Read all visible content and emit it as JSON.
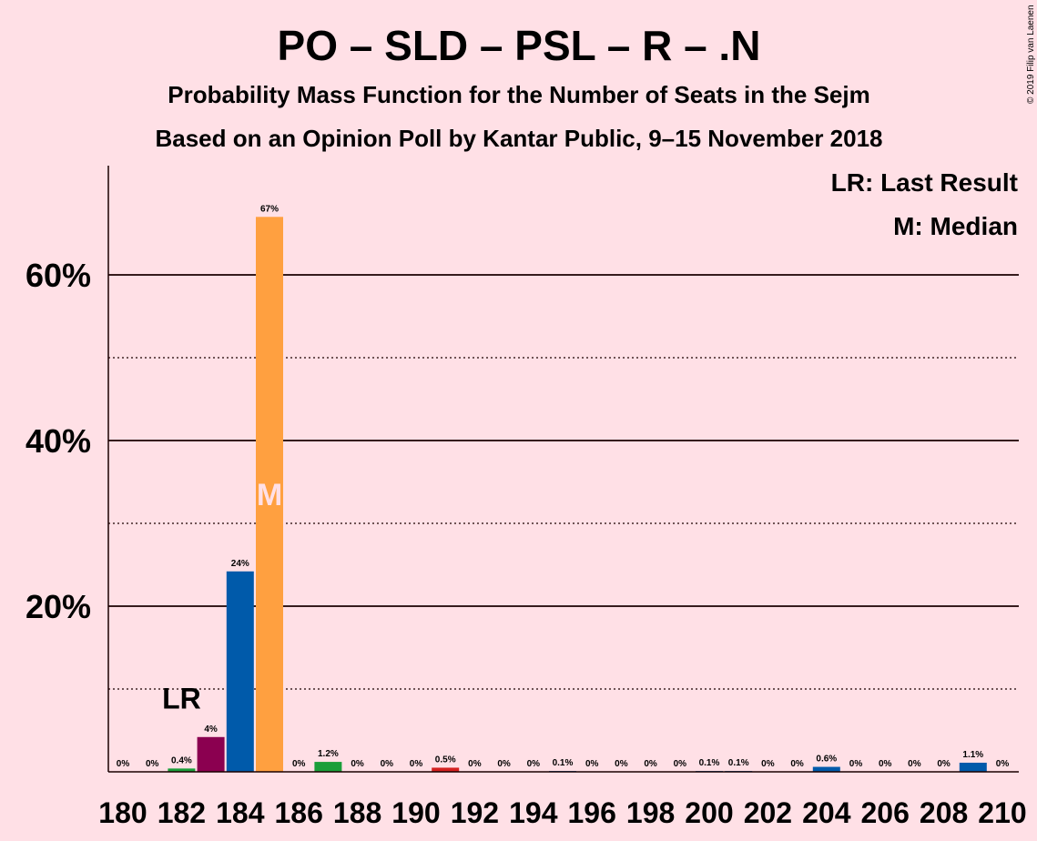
{
  "chart_data": {
    "type": "bar",
    "title": "PO – SLD – PSL – R – .N",
    "subtitle": "Probability Mass Function for the Number of Seats in the Sejm",
    "subtitle2": "Based on an Opinion Poll by Kantar Public, 9–15 November 2018",
    "copyright": "© 2019 Filip van Laenen",
    "legend": {
      "placement": "top-right",
      "items": [
        "LR: Last Result",
        "M: Median"
      ]
    },
    "xlabel": "",
    "ylabel": "",
    "ylim": [
      0,
      73
    ],
    "x_range": [
      180,
      210
    ],
    "x_tick_labels": [
      "180",
      "182",
      "184",
      "186",
      "188",
      "190",
      "192",
      "194",
      "196",
      "198",
      "200",
      "202",
      "204",
      "206",
      "208",
      "210"
    ],
    "y_ticks": [
      20,
      40,
      60
    ],
    "y_tick_labels": [
      "20%",
      "40%",
      "60%"
    ],
    "y_dotted_lines": [
      10,
      30,
      50
    ],
    "last_result": {
      "seat": 182,
      "label": "LR"
    },
    "median": {
      "seat": 185,
      "label": "M"
    },
    "bars": [
      {
        "seat": 180,
        "value": 0,
        "label": "0%",
        "color": "#1a9e3a"
      },
      {
        "seat": 181,
        "value": 0,
        "label": "0%",
        "color": "#1a9e3a"
      },
      {
        "seat": 182,
        "value": 0.4,
        "label": "0.4%",
        "color": "#1a9e3a"
      },
      {
        "seat": 183,
        "value": 4.2,
        "label": "4%",
        "color": "#8b0050"
      },
      {
        "seat": 184,
        "value": 24.2,
        "label": "24%",
        "color": "#005aaa"
      },
      {
        "seat": 185,
        "value": 67,
        "label": "67%",
        "color": "#ffa040"
      },
      {
        "seat": 186,
        "value": 0,
        "label": "0%",
        "color": "#1a9e3a"
      },
      {
        "seat": 187,
        "value": 1.2,
        "label": "1.2%",
        "color": "#1a9e3a"
      },
      {
        "seat": 188,
        "value": 0,
        "label": "0%",
        "color": "#1a9e3a"
      },
      {
        "seat": 189,
        "value": 0,
        "label": "0%",
        "color": "#1a9e3a"
      },
      {
        "seat": 190,
        "value": 0,
        "label": "0%",
        "color": "#1a9e3a"
      },
      {
        "seat": 191,
        "value": 0.5,
        "label": "0.5%",
        "color": "#d42020"
      },
      {
        "seat": 192,
        "value": 0,
        "label": "0%",
        "color": "#1a9e3a"
      },
      {
        "seat": 193,
        "value": 0,
        "label": "0%",
        "color": "#1a9e3a"
      },
      {
        "seat": 194,
        "value": 0,
        "label": "0%",
        "color": "#1a9e3a"
      },
      {
        "seat": 195,
        "value": 0.1,
        "label": "0.1%",
        "color": "#005aaa"
      },
      {
        "seat": 196,
        "value": 0,
        "label": "0%",
        "color": "#1a9e3a"
      },
      {
        "seat": 197,
        "value": 0,
        "label": "0%",
        "color": "#1a9e3a"
      },
      {
        "seat": 198,
        "value": 0,
        "label": "0%",
        "color": "#1a9e3a"
      },
      {
        "seat": 199,
        "value": 0,
        "label": "0%",
        "color": "#1a9e3a"
      },
      {
        "seat": 200,
        "value": 0.1,
        "label": "0.1%",
        "color": "#005aaa"
      },
      {
        "seat": 201,
        "value": 0.1,
        "label": "0.1%",
        "color": "#005aaa"
      },
      {
        "seat": 202,
        "value": 0,
        "label": "0%",
        "color": "#1a9e3a"
      },
      {
        "seat": 203,
        "value": 0,
        "label": "0%",
        "color": "#1a9e3a"
      },
      {
        "seat": 204,
        "value": 0.6,
        "label": "0.6%",
        "color": "#005aaa"
      },
      {
        "seat": 205,
        "value": 0,
        "label": "0%",
        "color": "#1a9e3a"
      },
      {
        "seat": 206,
        "value": 0,
        "label": "0%",
        "color": "#1a9e3a"
      },
      {
        "seat": 207,
        "value": 0,
        "label": "0%",
        "color": "#1a9e3a"
      },
      {
        "seat": 208,
        "value": 0,
        "label": "0%",
        "color": "#1a9e3a"
      },
      {
        "seat": 209,
        "value": 1.1,
        "label": "1.1%",
        "color": "#005aaa"
      },
      {
        "seat": 210,
        "value": 0,
        "label": "0%",
        "color": "#1a9e3a"
      }
    ],
    "colors": {
      "background": "#ffe0e6",
      "text": "#1a0000",
      "median_text": "#ffe0e6"
    }
  }
}
